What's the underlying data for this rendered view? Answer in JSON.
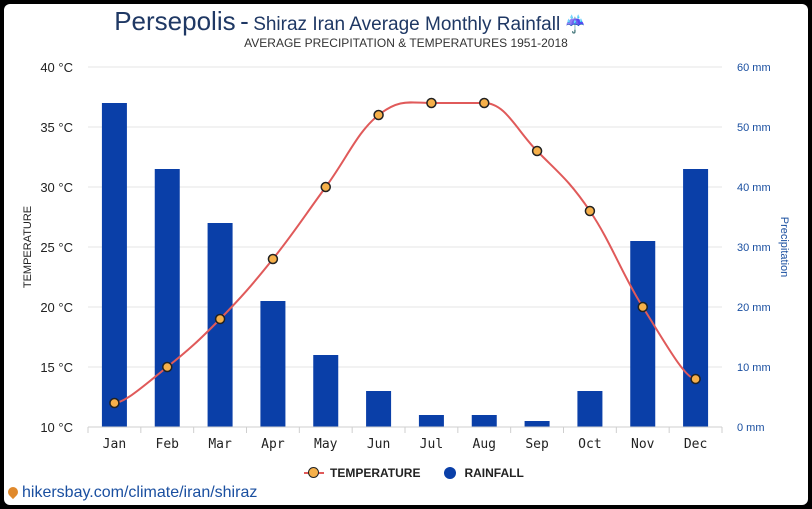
{
  "header": {
    "title_main": "Persepolis",
    "title_sep": "-",
    "title_sub": "Shiraz Iran Average Monthly Rainfall",
    "title_icon": "☔",
    "subtitle": "AVERAGE PRECIPITATION & TEMPERATURES 1951-2018"
  },
  "legend": {
    "temperature": "TEMPERATURE",
    "rainfall": "RAINFALL"
  },
  "footer": {
    "link": "hikersbay.com/climate/iran/shiraz"
  },
  "colors": {
    "bar": "#0a3fa8",
    "line": "#e05a5a",
    "marker_fill": "#f6b04a",
    "marker_stroke": "#222222",
    "grid": "#e6e6e6",
    "right_axis": "#1a4fa0"
  },
  "chart_data": {
    "type": "bar",
    "title": "Persepolis - Shiraz Iran Average Monthly Rainfall",
    "subtitle": "AVERAGE PRECIPITATION & TEMPERATURES 1951-2018",
    "categories": [
      "Jan",
      "Feb",
      "Mar",
      "Apr",
      "May",
      "Jun",
      "Jul",
      "Aug",
      "Sep",
      "Oct",
      "Nov",
      "Dec"
    ],
    "series": [
      {
        "name": "RAINFALL",
        "type": "bar",
        "axis": "right",
        "unit": "mm",
        "values": [
          54,
          43,
          34,
          21,
          12,
          6,
          2,
          2,
          1,
          6,
          31,
          43
        ]
      },
      {
        "name": "TEMPERATURE",
        "type": "line",
        "axis": "left",
        "unit": "°C",
        "values": [
          12,
          15,
          19,
          24,
          30,
          36,
          37,
          37,
          33,
          28,
          20,
          14
        ]
      }
    ],
    "y_left": {
      "label": "TEMPERATURE",
      "min": 10,
      "max": 40,
      "step": 5,
      "ticks": [
        "10 °C",
        "15 °C",
        "20 °C",
        "25 °C",
        "30 °C",
        "35 °C",
        "40 °C"
      ]
    },
    "y_right": {
      "label": "Precipitation",
      "min": 0,
      "max": 60,
      "step": 10,
      "ticks": [
        "0 mm",
        "10 mm",
        "20 mm",
        "30 mm",
        "40 mm",
        "50 mm",
        "60 mm"
      ]
    },
    "grid": true,
    "legend_position": "bottom-center"
  }
}
